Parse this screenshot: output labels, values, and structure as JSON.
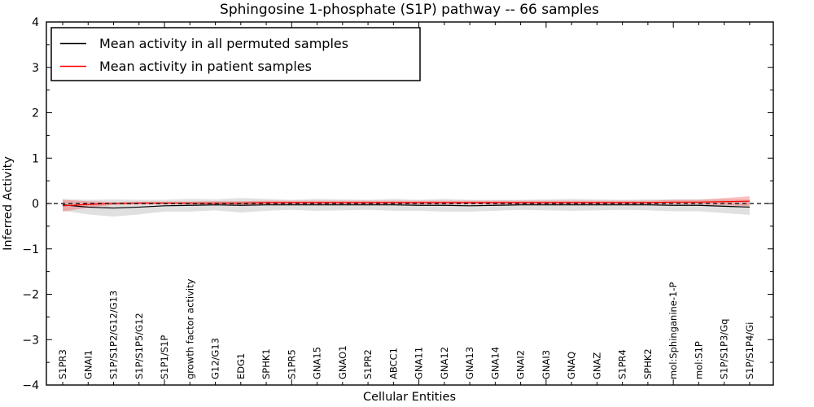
{
  "chart_data": {
    "type": "line",
    "title": "Sphingosine 1-phosphate (S1P) pathway -- 66 samples",
    "xlabel": "Cellular Entities",
    "ylabel": "Inferred Activity",
    "ylim": [
      -4,
      4
    ],
    "xlim": [
      0.36,
      28.93
    ],
    "ytick_values": [
      -4,
      -3,
      -2,
      -1,
      0,
      1,
      2,
      3,
      4
    ],
    "ytick_labels": [
      "−4",
      "−3",
      "−2",
      "−1",
      "0",
      "1",
      "2",
      "3",
      "4"
    ],
    "y_minor_step": 0.5,
    "xtick_values": [
      5,
      10,
      15,
      20,
      25
    ],
    "x_minor_step": 1,
    "grid": false,
    "legend_position": "upper left",
    "categories": [
      "S1PR3",
      "GNAI1",
      "S1P/S1P2/G12/G13",
      "S1P/S1P5/G12",
      "S1P1/S1P",
      "growth factor activity",
      "G12/G13",
      "EDG1",
      "SPHK1",
      "S1PR5",
      "GNA15",
      "GNAO1",
      "S1PR2",
      "ABCC1",
      "GNA11",
      "GNA12",
      "GNA13",
      "GNA14",
      "GNAI2",
      "GNAI3",
      "GNAQ",
      "GNAZ",
      "S1PR4",
      "SPHK2",
      "mol:Sphinganine-1-P",
      "mol:S1P",
      "S1P/S1P3/Gq",
      "S1P/S1P4/Gi"
    ],
    "zero_line": {
      "value": 0,
      "style": "dashed",
      "color": "#000000"
    },
    "series": [
      {
        "name": "Mean activity in all permuted samples",
        "color": "#000000",
        "band_color": "rgba(0,0,0,0.12)",
        "values": [
          -0.03,
          -0.08,
          -0.1,
          -0.08,
          -0.05,
          -0.04,
          -0.03,
          -0.04,
          -0.03,
          -0.03,
          -0.03,
          -0.03,
          -0.03,
          -0.03,
          -0.04,
          -0.04,
          -0.05,
          -0.04,
          -0.03,
          -0.03,
          -0.03,
          -0.03,
          -0.03,
          -0.03,
          -0.04,
          -0.04,
          -0.06,
          -0.08
        ],
        "std": [
          0.13,
          0.16,
          0.19,
          0.16,
          0.13,
          0.14,
          0.12,
          0.16,
          0.13,
          0.11,
          0.13,
          0.12,
          0.11,
          0.13,
          0.12,
          0.14,
          0.13,
          0.12,
          0.11,
          0.12,
          0.13,
          0.12,
          0.11,
          0.12,
          0.13,
          0.13,
          0.15,
          0.17
        ]
      },
      {
        "name": "Mean activity in patient samples",
        "color": "#ff0000",
        "band_color": "rgba(255,0,0,0.25)",
        "values": [
          -0.05,
          -0.02,
          0.0,
          0.01,
          0.01,
          0.01,
          0.01,
          0.01,
          0.02,
          0.02,
          0.02,
          0.02,
          0.02,
          0.02,
          0.02,
          0.02,
          0.02,
          0.02,
          0.02,
          0.02,
          0.02,
          0.02,
          0.02,
          0.02,
          0.03,
          0.03,
          0.04,
          0.05
        ],
        "std": [
          0.13,
          0.07,
          0.03,
          0.03,
          0.03,
          0.03,
          0.04,
          0.04,
          0.04,
          0.04,
          0.04,
          0.04,
          0.04,
          0.04,
          0.04,
          0.04,
          0.04,
          0.04,
          0.04,
          0.04,
          0.04,
          0.04,
          0.04,
          0.04,
          0.05,
          0.05,
          0.08,
          0.11
        ]
      }
    ]
  },
  "colors": {
    "background": "#ffffff",
    "axes": "#000000",
    "permuted_line": "#000000",
    "patient_line": "#ff0000"
  }
}
